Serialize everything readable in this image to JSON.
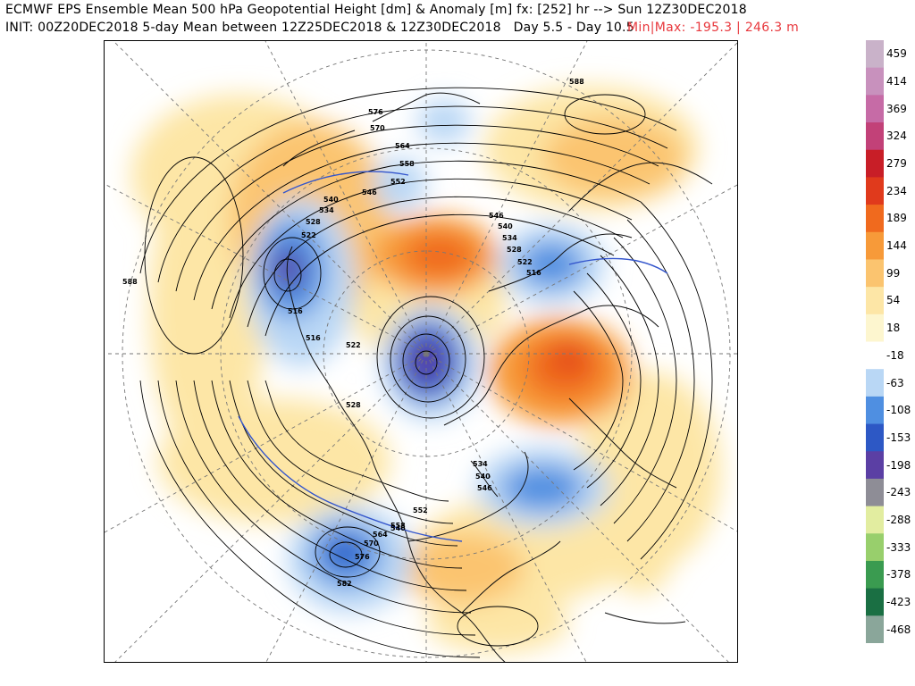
{
  "header": {
    "line1": "ECMWF EPS Ensemble Mean 500 hPa Geopotential Height [dm] & Anomaly [m] fx: [252] hr --> Sun 12Z30DEC2018",
    "line2": "INIT: 00Z20DEC2018 5-day Mean between 12Z25DEC2018 & 12Z30DEC2018   Day 5.5 - Day 10.5",
    "minmax": "Min|Max: -195.3 | 246.3 m"
  },
  "colorbar": {
    "labels": [
      "459",
      "414",
      "369",
      "324",
      "279",
      "234",
      "189",
      "144",
      "99",
      "54",
      "18",
      "-18",
      "-63",
      "-108",
      "-153",
      "-198",
      "-243",
      "-288",
      "-333",
      "-378",
      "-423",
      "-468"
    ],
    "colors": [
      "#c9b2c9",
      "#c891bd",
      "#c66ba6",
      "#c24178",
      "#c81e27",
      "#e03a1c",
      "#f06a1e",
      "#f79a39",
      "#fbc46f",
      "#fde6a6",
      "#fdf6cf",
      "#ffffff",
      "#b9d7f5",
      "#4f8fe1",
      "#2d58c5",
      "#5b3fa4",
      "#8e8d96",
      "#e2eda0",
      "#98cf6c",
      "#3a9b50",
      "#1a6f43",
      "#8aa69a"
    ]
  },
  "map": {
    "contour_labels": [
      "588",
      "576",
      "570",
      "564",
      "558",
      "552",
      "546",
      "540",
      "534",
      "528",
      "522",
      "516",
      "546",
      "540",
      "534",
      "528",
      "522",
      "516",
      "522",
      "528",
      "534",
      "540",
      "546",
      "552",
      "558",
      "564",
      "570",
      "576",
      "582",
      "588",
      "516",
      "546"
    ]
  }
}
